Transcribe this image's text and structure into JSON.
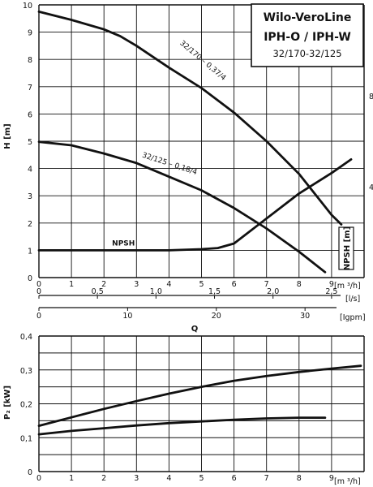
{
  "title": {
    "line1": "Wilo-VeroLine",
    "line2": "IPH-O / IPH-W",
    "line3": "32/170-32/125"
  },
  "chart_data": [
    {
      "type": "line",
      "title": "",
      "xlabel": "Q",
      "ylabel": "H [m]",
      "y2label": "NPSH [m]",
      "x_unit": "[m ³/h]",
      "xlim": [
        0,
        10
      ],
      "ylim": [
        0,
        10
      ],
      "y2lim": [
        0,
        12
      ],
      "grid": true,
      "x_ticks": [
        "0",
        "1",
        "2",
        "3",
        "4",
        "5",
        "6",
        "7",
        "8",
        "9"
      ],
      "y_ticks": [
        "0",
        "1",
        "2",
        "3",
        "4",
        "5",
        "6",
        "7",
        "8",
        "9",
        "10"
      ],
      "y2_ticks": [
        "4",
        "8"
      ],
      "secondary_axes": [
        {
          "unit": "[l/s]",
          "ticks": [
            "0",
            "0,5",
            "1,0",
            "1,5",
            "2,0",
            "2,5"
          ],
          "values": [
            0,
            0.5,
            1.0,
            1.5,
            2.0,
            2.5
          ]
        },
        {
          "unit": "[Igpm]",
          "ticks": [
            "0",
            "10",
            "20",
            "30"
          ],
          "values": [
            0,
            10,
            20,
            30
          ]
        }
      ],
      "series": [
        {
          "name": "32/170 – 0,37/4",
          "x": [
            0,
            1,
            2,
            2.5,
            3,
            4,
            5,
            6,
            7,
            8,
            9,
            9.3
          ],
          "y": [
            9.75,
            9.45,
            9.1,
            8.85,
            8.5,
            7.7,
            6.95,
            6.05,
            5.0,
            3.8,
            2.3,
            1.95
          ]
        },
        {
          "name": "32/125 – 0,18/4",
          "x": [
            0,
            1,
            2,
            3,
            4,
            5,
            6,
            7,
            8,
            8.8
          ],
          "y": [
            4.98,
            4.85,
            4.55,
            4.2,
            3.7,
            3.2,
            2.55,
            1.8,
            0.95,
            0.2
          ]
        },
        {
          "name": "NPSH",
          "axis": "y2",
          "x": [
            0,
            1,
            2,
            3,
            4,
            5,
            5.5,
            6,
            7,
            8,
            9,
            9.6
          ],
          "y": [
            1.2,
            1.2,
            1.2,
            1.2,
            1.2,
            1.25,
            1.3,
            1.5,
            2.6,
            3.7,
            4.6,
            5.2
          ]
        }
      ]
    },
    {
      "type": "line",
      "title": "",
      "xlabel": "",
      "ylabel": "P₂ [kW]",
      "x_unit": "[m ³/h]",
      "xlim": [
        0,
        10
      ],
      "ylim": [
        0,
        0.4
      ],
      "grid": true,
      "x_ticks": [
        "0",
        "1",
        "2",
        "3",
        "4",
        "5",
        "6",
        "7",
        "8",
        "9"
      ],
      "y_ticks": [
        "0",
        "0,1",
        "0,2",
        "0,3",
        "0,4"
      ],
      "y_tick_values": [
        0,
        0.1,
        0.2,
        0.3,
        0.4
      ],
      "series": [
        {
          "x": [
            0,
            1,
            2,
            3,
            4,
            5,
            6,
            7,
            8,
            9,
            9.9
          ],
          "y": [
            0.135,
            0.16,
            0.185,
            0.208,
            0.23,
            0.25,
            0.268,
            0.282,
            0.294,
            0.304,
            0.312
          ]
        },
        {
          "x": [
            0,
            1,
            2,
            3,
            4,
            5,
            6,
            7,
            8,
            8.8
          ],
          "y": [
            0.11,
            0.12,
            0.128,
            0.136,
            0.143,
            0.148,
            0.153,
            0.157,
            0.159,
            0.159
          ]
        }
      ]
    }
  ]
}
